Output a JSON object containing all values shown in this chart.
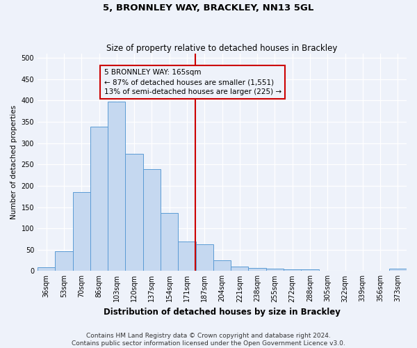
{
  "title": "5, BRONNLEY WAY, BRACKLEY, NN13 5GL",
  "subtitle": "Size of property relative to detached houses in Brackley",
  "xlabel": "Distribution of detached houses by size in Brackley",
  "ylabel": "Number of detached properties",
  "categories": [
    "36sqm",
    "53sqm",
    "70sqm",
    "86sqm",
    "103sqm",
    "120sqm",
    "137sqm",
    "154sqm",
    "171sqm",
    "187sqm",
    "204sqm",
    "221sqm",
    "238sqm",
    "255sqm",
    "272sqm",
    "288sqm",
    "305sqm",
    "322sqm",
    "339sqm",
    "356sqm",
    "373sqm"
  ],
  "values": [
    9,
    46,
    185,
    338,
    397,
    275,
    239,
    136,
    69,
    62,
    25,
    11,
    7,
    5,
    4,
    4,
    0,
    0,
    0,
    0,
    5
  ],
  "bar_color": "#c5d8f0",
  "bar_edge_color": "#5b9bd5",
  "property_line_index": 8.47,
  "annotation_text": "5 BRONNLEY WAY: 165sqm\n← 87% of detached houses are smaller (1,551)\n13% of semi-detached houses are larger (225) →",
  "annotation_box_color": "#cc0000",
  "line_color": "#cc0000",
  "footnote": "Contains HM Land Registry data © Crown copyright and database right 2024.\nContains public sector information licensed under the Open Government Licence v3.0.",
  "ylim": [
    0,
    510
  ],
  "background_color": "#eef2fa",
  "grid_color": "#d0d8e8",
  "title_fontsize": 9.5,
  "subtitle_fontsize": 8.5,
  "xlabel_fontsize": 8.5,
  "ylabel_fontsize": 7.5,
  "tick_fontsize": 7,
  "annotation_fontsize": 7.5,
  "footnote_fontsize": 6.5
}
